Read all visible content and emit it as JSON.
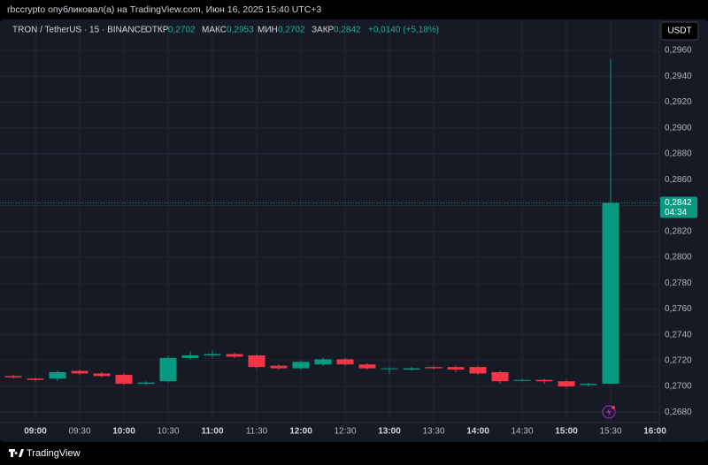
{
  "header": "rbccrypto опубликовал(а) на TradingView.com, Июн 16, 2025 15:40 UTC+3",
  "footer": "TradingView",
  "currency_button": "USDT",
  "chart_data": {
    "type": "candlestick",
    "symbol": "TRON / TetherUS · 15 · BINANCE",
    "legend": {
      "open_label": "ОТКР",
      "open": "0,2702",
      "high_label": "МАКС",
      "high": "0,2953",
      "low_label": "МИН",
      "low": "0,2702",
      "close_label": "ЗАКР",
      "close": "0,2842",
      "change": "+0,0140 (+5,18%)"
    },
    "categories": [
      null,
      "09:00",
      null,
      "09:30",
      null,
      "10:00",
      null,
      "10:30",
      null,
      "11:00",
      null,
      "11:30",
      null,
      "12:00",
      null,
      "12:30",
      null,
      "13:00",
      null,
      "13:30",
      null,
      "14:00",
      null,
      "14:30",
      null,
      "15:00",
      null,
      "15:30",
      null,
      "16:00"
    ],
    "open": [
      0.2708,
      0.2706,
      0.2706,
      0.2712,
      0.271,
      0.2709,
      0.2702,
      0.2704,
      0.2722,
      0.2724,
      0.2725,
      0.2724,
      0.2716,
      0.2714,
      0.2717,
      0.2721,
      0.2717,
      0.2714,
      0.2713,
      0.2715,
      0.2715,
      0.2715,
      0.2711,
      0.2705,
      0.2705,
      0.2704,
      0.2701,
      0.2702,
      null,
      null
    ],
    "high": [
      0.2709,
      0.2707,
      0.2712,
      0.2713,
      0.2711,
      0.271,
      0.2704,
      0.2724,
      0.2727,
      0.2728,
      0.2726,
      0.2725,
      0.2717,
      0.272,
      0.2722,
      0.2722,
      0.2718,
      0.2715,
      0.2715,
      0.2716,
      0.2716,
      0.2716,
      0.2712,
      0.2706,
      0.2706,
      0.2705,
      0.2703,
      0.2953,
      null,
      null
    ],
    "low": [
      0.2706,
      0.2704,
      0.2704,
      0.2709,
      0.2707,
      0.2701,
      0.2701,
      0.2703,
      0.2721,
      0.2722,
      0.2722,
      0.2714,
      0.2713,
      0.2713,
      0.2716,
      0.2716,
      0.2713,
      0.271,
      0.2712,
      0.2713,
      0.2711,
      0.2709,
      0.2702,
      0.2704,
      0.2702,
      0.2699,
      0.27,
      0.2702,
      null,
      null
    ],
    "close": [
      0.2707,
      0.2705,
      0.2711,
      0.271,
      0.2708,
      0.2702,
      0.2703,
      0.2722,
      0.2724,
      0.2725,
      0.2723,
      0.2715,
      0.2714,
      0.2719,
      0.2721,
      0.2717,
      0.2714,
      0.2714,
      0.2714,
      0.2714,
      0.2713,
      0.271,
      0.2704,
      0.2705,
      0.2704,
      0.27,
      0.2702,
      0.2842,
      null,
      null
    ],
    "up_color": "#089981",
    "down_color": "#f23645",
    "last_price": {
      "value": 0.2842,
      "label": "0,2842"
    },
    "countdown": "04:34",
    "ylim": [
      0.2672,
      0.2984
    ],
    "yticks": [
      {
        "value": 0.268,
        "label": "0,2680"
      },
      {
        "value": 0.27,
        "label": "0,2700"
      },
      {
        "value": 0.272,
        "label": "0,2720"
      },
      {
        "value": 0.274,
        "label": "0,2740"
      },
      {
        "value": 0.276,
        "label": "0,2760"
      },
      {
        "value": 0.278,
        "label": "0,2780"
      },
      {
        "value": 0.28,
        "label": "0,2800"
      },
      {
        "value": 0.282,
        "label": "0,2820"
      },
      {
        "value": 0.284,
        "label": "0,2840"
      },
      {
        "value": 0.286,
        "label": "0,2860"
      },
      {
        "value": 0.288,
        "label": "0,2880"
      },
      {
        "value": 0.29,
        "label": "0,2900"
      },
      {
        "value": 0.292,
        "label": "0,2920"
      },
      {
        "value": 0.294,
        "label": "0,2940"
      },
      {
        "value": 0.296,
        "label": "0,2960"
      }
    ],
    "grid": true
  }
}
